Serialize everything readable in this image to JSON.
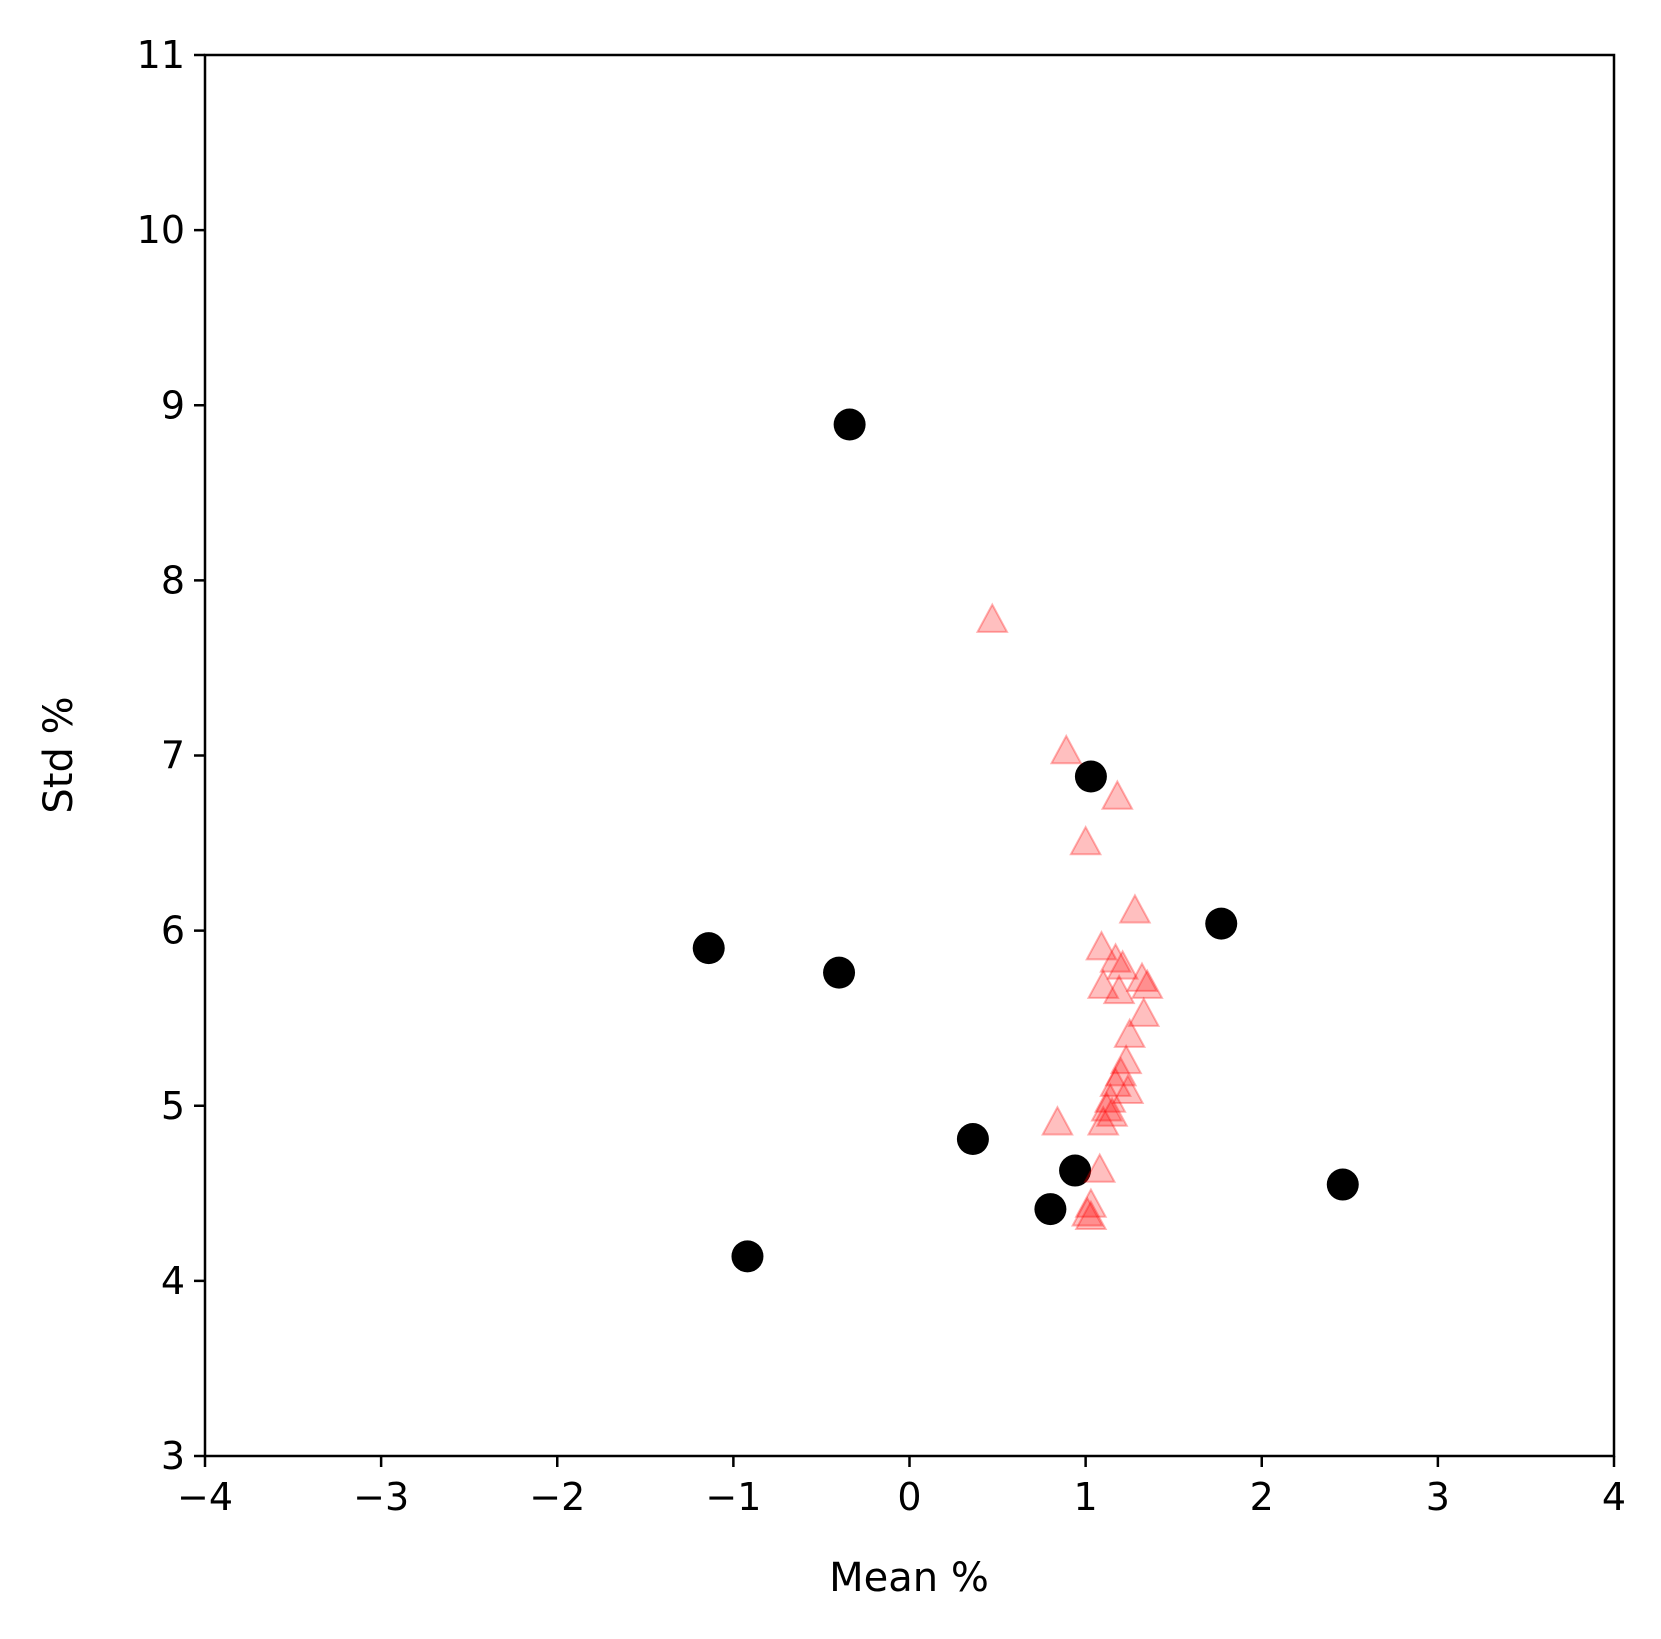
{
  "chart_data": {
    "type": "scatter",
    "title": "",
    "xlabel": "Mean %",
    "ylabel": "Std %",
    "xlim": [
      -4,
      4
    ],
    "ylim": [
      3,
      11
    ],
    "x_ticks": [
      -4,
      -3,
      -2,
      -1,
      0,
      1,
      2,
      3,
      4
    ],
    "y_ticks": [
      3,
      4,
      5,
      6,
      7,
      8,
      9,
      10,
      11
    ],
    "x_tick_labels": [
      "−4",
      "−3",
      "−2",
      "−1",
      "0",
      "1",
      "2",
      "3",
      "4"
    ],
    "y_tick_labels": [
      "3",
      "4",
      "5",
      "6",
      "7",
      "8",
      "9",
      "10",
      "11"
    ],
    "grid": false,
    "legend": "none",
    "series": [
      {
        "marker": "circle",
        "color": "#000000",
        "points": [
          {
            "x": -0.34,
            "y": 8.89
          },
          {
            "x": 1.03,
            "y": 6.88
          },
          {
            "x": 1.77,
            "y": 6.04
          },
          {
            "x": -1.14,
            "y": 5.9
          },
          {
            "x": -0.4,
            "y": 5.76
          },
          {
            "x": 0.36,
            "y": 4.81
          },
          {
            "x": 0.94,
            "y": 4.63
          },
          {
            "x": 2.46,
            "y": 4.55
          },
          {
            "x": 0.8,
            "y": 4.41
          },
          {
            "x": -0.92,
            "y": 4.14
          }
        ]
      },
      {
        "marker": "triangle",
        "color": "#ff0000",
        "opacity": 0.25,
        "points": [
          {
            "x": 0.47,
            "y": 7.77
          },
          {
            "x": 0.89,
            "y": 7.02
          },
          {
            "x": 1.18,
            "y": 6.76
          },
          {
            "x": 1.0,
            "y": 6.5
          },
          {
            "x": 1.28,
            "y": 6.11
          },
          {
            "x": 1.09,
            "y": 5.9
          },
          {
            "x": 1.17,
            "y": 5.83
          },
          {
            "x": 1.21,
            "y": 5.79
          },
          {
            "x": 1.32,
            "y": 5.72
          },
          {
            "x": 1.35,
            "y": 5.68
          },
          {
            "x": 1.1,
            "y": 5.68
          },
          {
            "x": 1.19,
            "y": 5.65
          },
          {
            "x": 1.33,
            "y": 5.52
          },
          {
            "x": 1.25,
            "y": 5.4
          },
          {
            "x": 1.23,
            "y": 5.25
          },
          {
            "x": 1.2,
            "y": 5.18
          },
          {
            "x": 1.17,
            "y": 5.12
          },
          {
            "x": 1.24,
            "y": 5.08
          },
          {
            "x": 1.14,
            "y": 5.03
          },
          {
            "x": 1.12,
            "y": 4.98
          },
          {
            "x": 1.15,
            "y": 4.95
          },
          {
            "x": 1.1,
            "y": 4.9
          },
          {
            "x": 0.84,
            "y": 4.9
          },
          {
            "x": 1.08,
            "y": 4.63
          },
          {
            "x": 1.03,
            "y": 4.43
          },
          {
            "x": 1.01,
            "y": 4.38
          },
          {
            "x": 1.03,
            "y": 4.36
          }
        ]
      }
    ]
  }
}
